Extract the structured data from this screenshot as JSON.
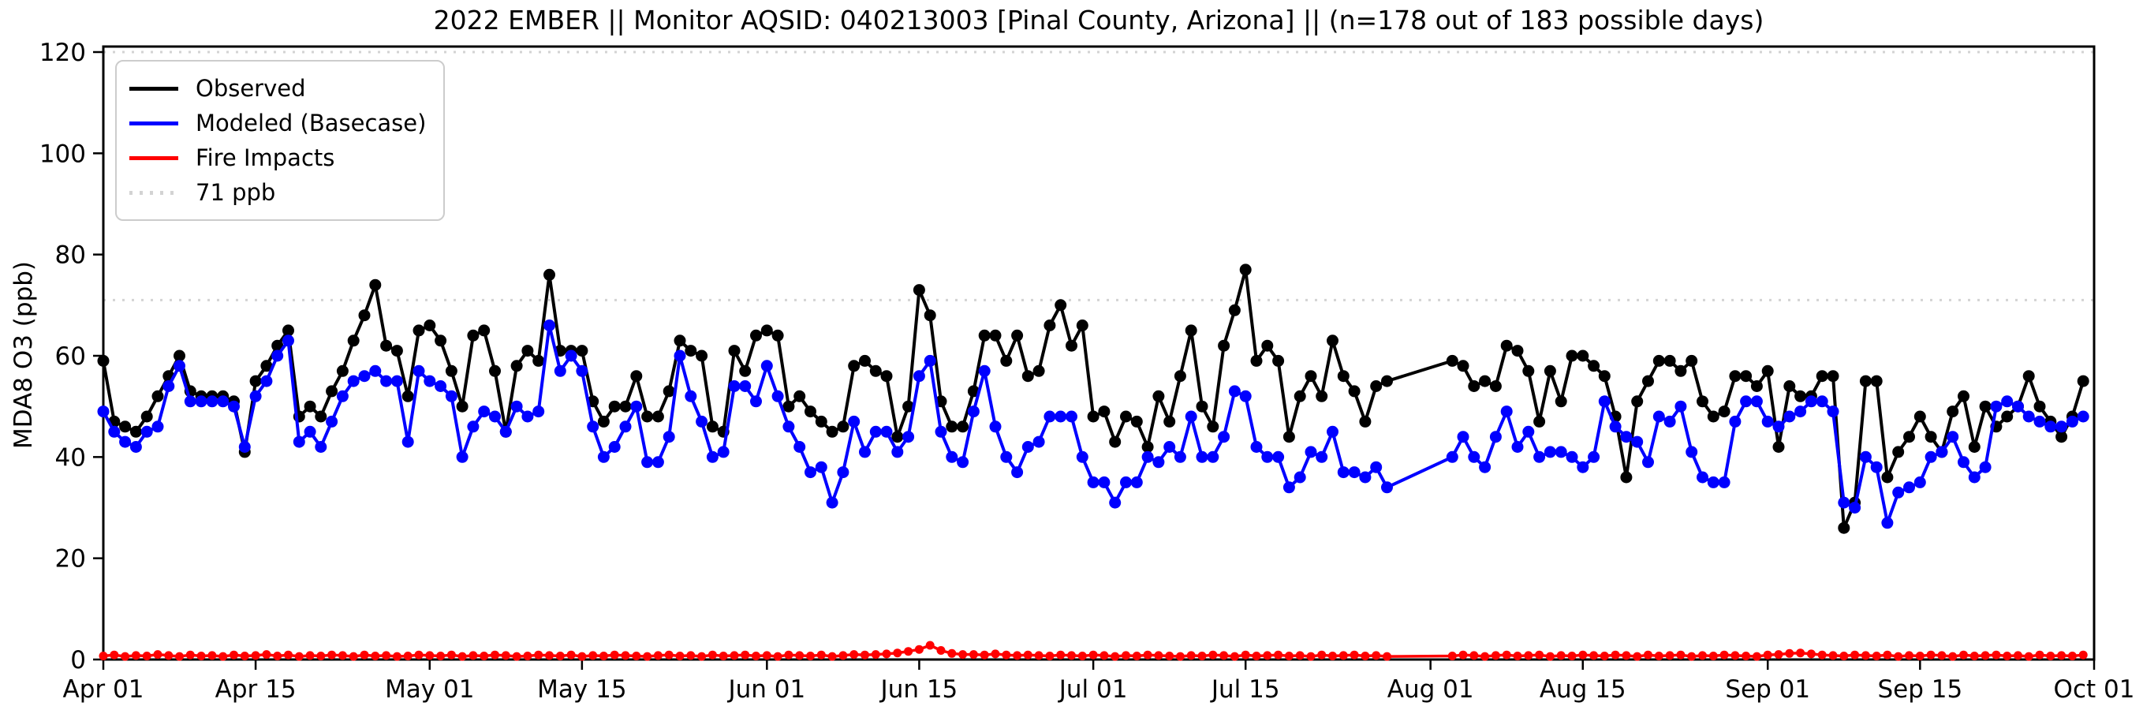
{
  "chart": {
    "title": "2022 EMBER || Monitor AQSID: 040213003 [Pinal County, Arizona] || (n=178 out of 183 possible days)",
    "ylabel": "MDA8 O3 (ppb)"
  },
  "legend": {
    "items": [
      {
        "label": "Observed",
        "color": "#000000",
        "style": "solid"
      },
      {
        "label": "Modeled (Basecase)",
        "color": "#0000ff",
        "style": "solid"
      },
      {
        "label": "Fire Impacts",
        "color": "#ff0000",
        "style": "solid"
      },
      {
        "label": "71 ppb",
        "color": "#d3d3d3",
        "style": "dotted"
      }
    ]
  },
  "chart_data": {
    "type": "line",
    "title": "2022 EMBER || Monitor AQSID: 040213003 [Pinal County, Arizona] || (n=178 out of 183 possible days)",
    "xlabel": "",
    "ylabel": "MDA8 O3 (ppb)",
    "ylim": [
      0,
      121
    ],
    "yticks": [
      0,
      20,
      40,
      60,
      80,
      100,
      120
    ],
    "grid": false,
    "legend_position": "upper left",
    "x_axis": {
      "unit": "days from Apr 01, 2022",
      "total_days": 183,
      "ticks": [
        {
          "day": 0,
          "label": "Apr 01"
        },
        {
          "day": 14,
          "label": "Apr 15"
        },
        {
          "day": 30,
          "label": "May 01"
        },
        {
          "day": 44,
          "label": "May 15"
        },
        {
          "day": 61,
          "label": "Jun 01"
        },
        {
          "day": 75,
          "label": "Jun 15"
        },
        {
          "day": 91,
          "label": "Jul 01"
        },
        {
          "day": 105,
          "label": "Jul 15"
        },
        {
          "day": 122,
          "label": "Aug 01"
        },
        {
          "day": 136,
          "label": "Aug 15"
        },
        {
          "day": 153,
          "label": "Sep 01"
        },
        {
          "day": 167,
          "label": "Sep 15"
        },
        {
          "day": 183,
          "label": "Oct 01"
        }
      ]
    },
    "thresholds": [
      {
        "value": 71,
        "label": "71 ppb",
        "color": "#d3d3d3",
        "style": "dotted"
      },
      {
        "value": 120,
        "label": "",
        "color": "#d3d3d3",
        "style": "dotted"
      }
    ],
    "missing_days": {
      "start_day": 119,
      "end_day": 123
    },
    "series": [
      {
        "name": "Observed",
        "color": "#000000",
        "marker": "circle",
        "values": [
          59,
          47,
          46,
          45,
          48,
          52,
          56,
          60,
          53,
          52,
          52,
          52,
          51,
          41,
          55,
          58,
          62,
          65,
          48,
          50,
          48,
          53,
          57,
          63,
          68,
          74,
          62,
          61,
          52,
          65,
          66,
          63,
          57,
          50,
          64,
          65,
          57,
          45,
          58,
          61,
          59,
          76,
          61,
          61,
          61,
          51,
          47,
          50,
          50,
          56,
          48,
          48,
          53,
          63,
          61,
          60,
          46,
          45,
          61,
          57,
          64,
          65,
          64,
          50,
          52,
          49,
          47,
          45,
          46,
          58,
          59,
          57,
          56,
          44,
          50,
          73,
          68,
          51,
          46,
          46,
          53,
          64,
          64,
          59,
          64,
          56,
          57,
          66,
          70,
          62,
          66,
          48,
          49,
          43,
          48,
          47,
          42,
          52,
          47,
          56,
          65,
          50,
          46,
          62,
          69,
          77,
          59,
          62,
          59,
          44,
          52,
          56,
          52,
          63,
          56,
          53,
          47,
          54,
          55,
          null,
          null,
          null,
          null,
          null,
          59,
          58,
          54,
          55,
          54,
          62,
          61,
          57,
          47,
          57,
          51,
          60,
          60,
          58,
          56,
          48,
          36,
          51,
          55,
          59,
          59,
          57,
          59,
          51,
          48,
          49,
          56,
          56,
          54,
          57,
          42,
          54,
          52,
          52,
          56,
          56,
          26,
          31,
          55,
          55,
          36,
          41,
          44,
          48,
          44,
          41,
          49,
          52,
          42,
          50,
          46,
          48,
          50,
          56,
          50,
          47,
          44,
          48,
          55
        ]
      },
      {
        "name": "Modeled (Basecase)",
        "color": "#0000ff",
        "marker": "circle",
        "values": [
          49,
          45,
          43,
          42,
          45,
          46,
          54,
          58,
          51,
          51,
          51,
          51,
          50,
          42,
          52,
          55,
          60,
          63,
          43,
          45,
          42,
          47,
          52,
          55,
          56,
          57,
          55,
          55,
          43,
          57,
          55,
          54,
          52,
          40,
          46,
          49,
          48,
          45,
          50,
          48,
          49,
          66,
          57,
          60,
          57,
          46,
          40,
          42,
          46,
          50,
          39,
          39,
          44,
          60,
          52,
          47,
          40,
          41,
          54,
          54,
          51,
          58,
          52,
          46,
          42,
          37,
          38,
          31,
          37,
          47,
          41,
          45,
          45,
          41,
          44,
          56,
          59,
          45,
          40,
          39,
          49,
          57,
          46,
          40,
          37,
          42,
          43,
          48,
          48,
          48,
          40,
          35,
          35,
          31,
          35,
          35,
          40,
          39,
          42,
          40,
          48,
          40,
          40,
          44,
          53,
          52,
          42,
          40,
          40,
          34,
          36,
          41,
          40,
          45,
          37,
          37,
          36,
          38,
          34,
          null,
          null,
          null,
          null,
          null,
          40,
          44,
          40,
          38,
          44,
          49,
          42,
          45,
          40,
          41,
          41,
          40,
          38,
          40,
          51,
          46,
          44,
          43,
          39,
          48,
          47,
          50,
          41,
          36,
          35,
          35,
          47,
          51,
          51,
          47,
          46,
          48,
          49,
          51,
          51,
          49,
          31,
          30,
          40,
          38,
          27,
          33,
          34,
          35,
          40,
          41,
          44,
          39,
          36,
          38,
          50,
          51,
          50,
          48,
          47,
          46,
          46,
          47,
          48
        ]
      },
      {
        "name": "Fire Impacts",
        "color": "#ff0000",
        "marker": "circle",
        "values": [
          0.7,
          0.9,
          0.6,
          0.8,
          0.7,
          1.0,
          0.8,
          0.6,
          0.9,
          0.7,
          0.8,
          0.6,
          0.9,
          0.7,
          0.8,
          1.0,
          0.7,
          0.9,
          0.6,
          0.8,
          0.7,
          0.9,
          0.8,
          0.6,
          0.9,
          0.7,
          0.8,
          0.6,
          0.7,
          0.9,
          0.8,
          0.7,
          0.9,
          0.6,
          0.8,
          0.7,
          0.9,
          0.8,
          0.6,
          0.7,
          0.9,
          0.8,
          0.7,
          0.9,
          0.6,
          0.8,
          0.7,
          0.9,
          0.8,
          0.7,
          0.6,
          0.8,
          0.9,
          0.7,
          0.8,
          0.6,
          0.9,
          0.7,
          0.8,
          0.9,
          0.7,
          0.8,
          0.6,
          0.9,
          0.8,
          0.7,
          0.9,
          0.6,
          0.8,
          1.0,
          0.9,
          1.0,
          1.1,
          1.3,
          1.6,
          2.0,
          2.8,
          1.8,
          1.2,
          1.0,
          1.0,
          0.9,
          1.1,
          0.9,
          0.8,
          0.9,
          0.8,
          0.7,
          0.9,
          0.8,
          0.7,
          0.9,
          0.8,
          0.6,
          0.8,
          0.7,
          0.9,
          0.8,
          0.7,
          0.6,
          0.8,
          0.7,
          0.9,
          0.8,
          0.6,
          0.9,
          0.7,
          0.8,
          0.9,
          0.7,
          0.8,
          0.6,
          0.9,
          0.7,
          0.8,
          0.9,
          0.7,
          0.8,
          0.6,
          null,
          null,
          null,
          null,
          null,
          0.7,
          0.9,
          0.8,
          0.6,
          0.8,
          0.9,
          0.7,
          0.8,
          0.9,
          0.6,
          0.8,
          0.7,
          0.9,
          0.8,
          0.7,
          0.9,
          0.8,
          0.6,
          0.9,
          0.7,
          0.8,
          0.9,
          0.6,
          0.8,
          0.7,
          0.9,
          0.8,
          0.7,
          0.6,
          0.9,
          1.0,
          1.2,
          1.3,
          1.1,
          0.9,
          0.8,
          0.7,
          0.9,
          0.8,
          0.7,
          0.9,
          0.6,
          0.8,
          0.7,
          0.9,
          0.8,
          0.6,
          0.9,
          0.7,
          0.8,
          0.9,
          0.7,
          0.8,
          0.6,
          0.9,
          0.7,
          0.8,
          0.7,
          0.9
        ]
      }
    ]
  }
}
